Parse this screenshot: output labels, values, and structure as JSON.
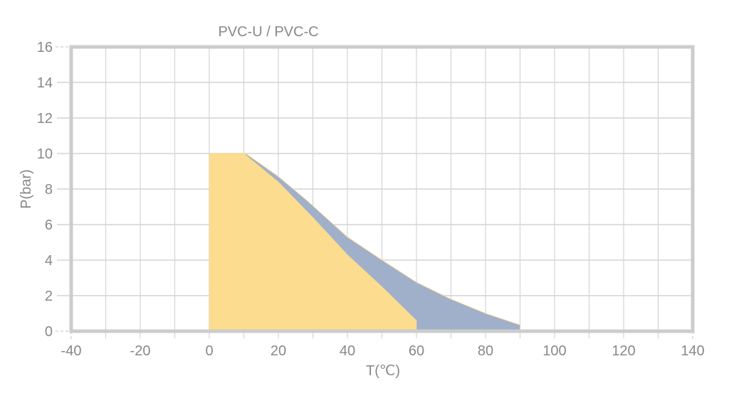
{
  "chart_data": {
    "type": "area",
    "title": "PVC-U / PVC-C",
    "xlabel": "T(℃)",
    "ylabel": "P(bar)",
    "xlim": [
      -40,
      140
    ],
    "ylim": [
      0,
      16
    ],
    "x_ticks": [
      -40,
      -20,
      0,
      20,
      40,
      60,
      80,
      100,
      120,
      140
    ],
    "y_ticks": [
      0,
      2,
      4,
      6,
      8,
      10,
      12,
      14,
      16
    ],
    "grid": true,
    "legend": null,
    "series": [
      {
        "name": "PVC-C",
        "color": "#a0b0cb",
        "points": [
          [
            10.5,
            10
          ],
          [
            20,
            8.7
          ],
          [
            28,
            7.4
          ],
          [
            40,
            5.3
          ],
          [
            50,
            4.0
          ],
          [
            60,
            2.75
          ],
          [
            70,
            1.8
          ],
          [
            80,
            1.0
          ],
          [
            90,
            0.35
          ],
          [
            90,
            0
          ]
        ]
      },
      {
        "name": "PVC-U",
        "color": "#fcdc8f",
        "points": [
          [
            0,
            0
          ],
          [
            0,
            10
          ],
          [
            10,
            10
          ],
          [
            20,
            8.4
          ],
          [
            30,
            6.4
          ],
          [
            40,
            4.3
          ],
          [
            50,
            2.5
          ],
          [
            60,
            0.6
          ],
          [
            60,
            0
          ]
        ]
      }
    ]
  },
  "labels": {
    "title": "PVC-U / PVC-C",
    "xlabel": "T(℃)",
    "ylabel": "P(bar)",
    "x_ticks": [
      "-40",
      "-20",
      "0",
      "20",
      "40",
      "60",
      "80",
      "100",
      "120",
      "140"
    ],
    "y_ticks": [
      "0",
      "2",
      "4",
      "6",
      "8",
      "10",
      "12",
      "14",
      "16"
    ]
  },
  "colors": {
    "frame": "#cccccc",
    "grid": "#d4d4d4",
    "text": "#888888",
    "pvc_u_fill": "#fcdc8f",
    "pvc_c_fill": "#a0b0cb"
  }
}
